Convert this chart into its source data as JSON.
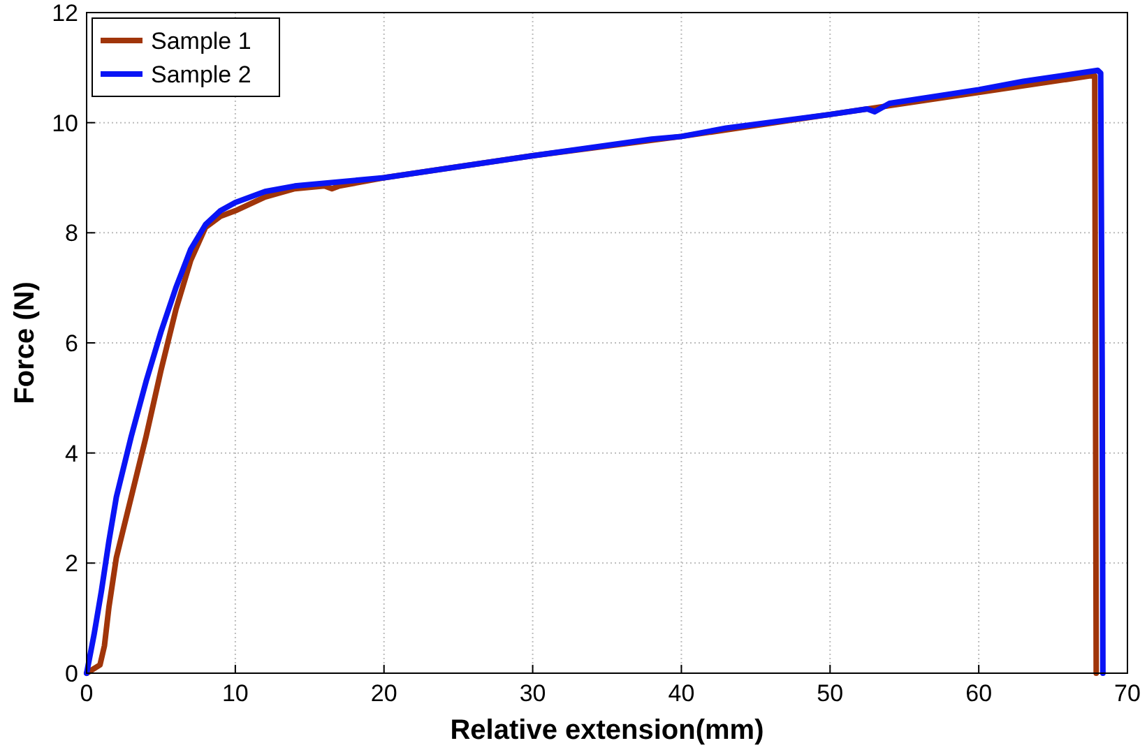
{
  "chart_data": {
    "type": "line",
    "xlabel": "Relative extension(mm)",
    "ylabel": "Force (N)",
    "xlim": [
      0,
      70
    ],
    "ylim": [
      0,
      12
    ],
    "xticks": [
      0,
      10,
      20,
      30,
      40,
      50,
      60,
      70
    ],
    "yticks": [
      0,
      2,
      4,
      6,
      8,
      10,
      12
    ],
    "grid": true,
    "legend": "top left",
    "line_style": "solid",
    "marker": "none",
    "series": [
      {
        "name": "Sample 1",
        "color": "#a0350a",
        "x": [
          0,
          0.9,
          1.2,
          1.5,
          2,
          3,
          4,
          5,
          6,
          7,
          8,
          9,
          10,
          12,
          14,
          16,
          16.5,
          17,
          20,
          30,
          40,
          50,
          60,
          67.5,
          67.8,
          67.85,
          67.9
        ],
        "values": [
          0,
          0.15,
          0.5,
          1.2,
          2.1,
          3.2,
          4.3,
          5.5,
          6.6,
          7.5,
          8.1,
          8.3,
          8.4,
          8.65,
          8.8,
          8.85,
          8.8,
          8.85,
          9.0,
          9.4,
          9.75,
          10.15,
          10.55,
          10.85,
          10.85,
          5.6,
          0
        ]
      },
      {
        "name": "Sample 2",
        "color": "#0a14f5",
        "x": [
          0,
          0.5,
          1,
          1.5,
          2,
          3,
          4,
          5,
          6,
          7,
          8,
          9,
          10,
          12,
          14,
          18,
          20,
          30,
          38,
          40,
          43,
          50,
          52.5,
          53,
          54,
          60,
          63,
          68,
          68.2,
          68.3,
          68.35
        ],
        "values": [
          0,
          0.7,
          1.5,
          2.4,
          3.2,
          4.3,
          5.3,
          6.2,
          7.0,
          7.7,
          8.15,
          8.4,
          8.55,
          8.75,
          8.85,
          8.95,
          9.0,
          9.4,
          9.7,
          9.75,
          9.9,
          10.15,
          10.25,
          10.2,
          10.35,
          10.6,
          10.75,
          10.95,
          10.9,
          5.5,
          0
        ]
      }
    ]
  }
}
